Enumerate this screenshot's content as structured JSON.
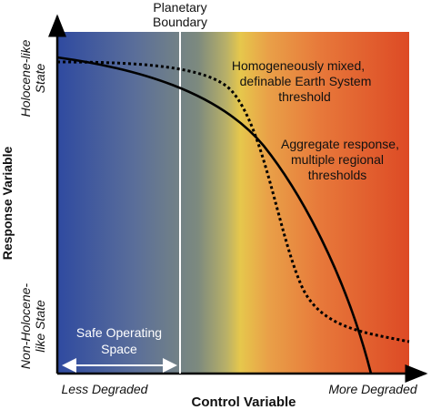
{
  "diagram": {
    "planetary_boundary_line1": "Planetary",
    "planetary_boundary_line2": "Boundary",
    "homog_line1": "Homogeneously mixed,",
    "homog_line2": "definable Earth System",
    "homog_line3": "threshold",
    "aggregate_line1": "Aggregate response,",
    "aggregate_line2": "multiple regional",
    "aggregate_line3": "thresholds",
    "safe_line1": "Safe Operating",
    "safe_line2": "Space",
    "y_axis_label": "Response Variable",
    "y_top_line1": "Holocene-like",
    "y_top_line2": "State",
    "y_bottom_line1": "Non-Holocene-",
    "y_bottom_line2": "like State",
    "x_axis_label": "Control Variable",
    "x_left": "Less Degraded",
    "x_right": "More Degraded"
  },
  "colors": {
    "gradient_blue": "#2f4aa0",
    "gradient_grey": "#7a8a80",
    "gradient_yellow": "#e8c84a",
    "gradient_orange": "#e8823a",
    "gradient_red": "#dd4a25",
    "boundary_line": "#ffffff",
    "curves": "#000000"
  }
}
